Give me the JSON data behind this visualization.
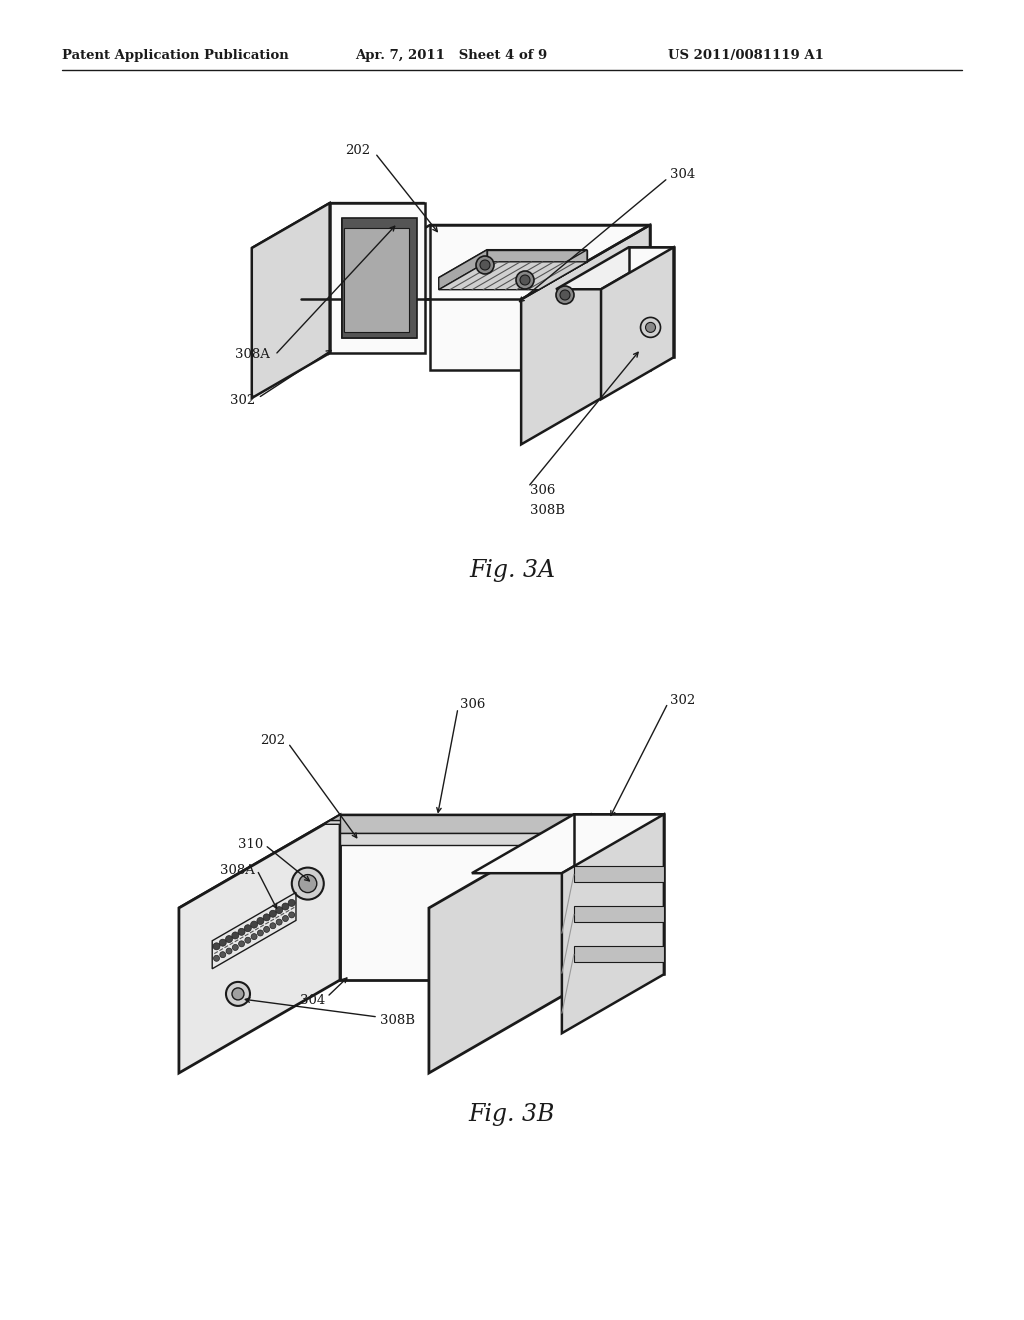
{
  "background_color": "#ffffff",
  "line_color": "#1a1a1a",
  "line_width": 1.8,
  "header_left": "Patent Application Publication",
  "header_middle": "Apr. 7, 2011   Sheet 4 of 9",
  "header_right": "US 2011/0081119 A1",
  "fig_label_A": "Fig. 3A",
  "fig_label_B": "Fig. 3B",
  "face_light": "#f0f0f0",
  "face_mid": "#d8d8d8",
  "face_dark": "#b8b8b8",
  "face_darker": "#989898",
  "face_white": "#fafafa"
}
